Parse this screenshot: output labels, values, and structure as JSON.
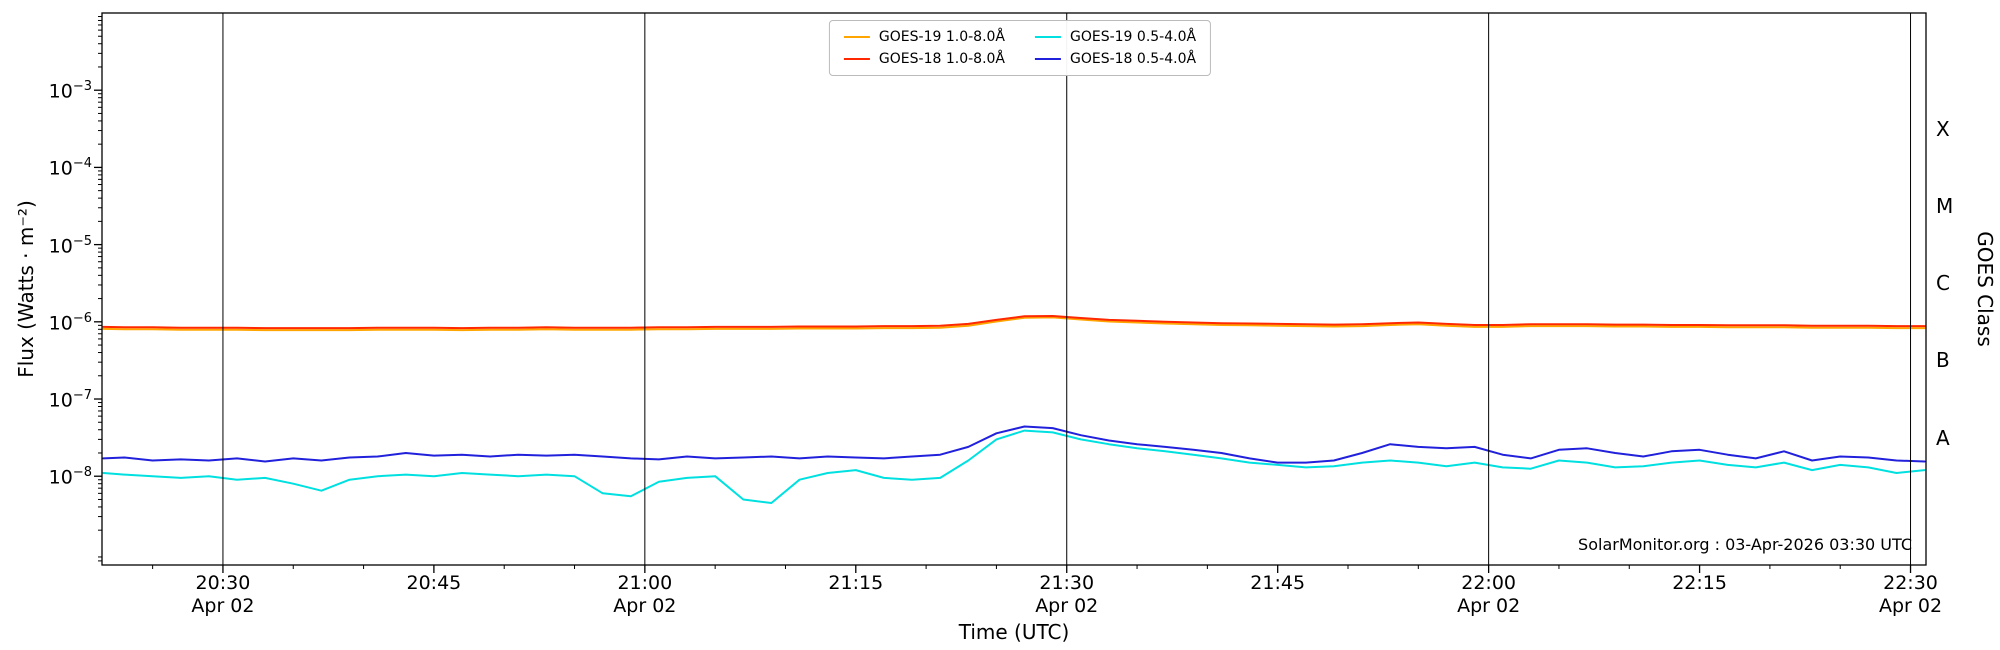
{
  "chart_data": {
    "type": "line",
    "xlabel": "Time (UTC)",
    "ylabel_left": "Flux (Watts · m⁻²)",
    "ylabel_right": "GOES Class",
    "watermark": "SolarMonitor.org : 03-Apr-2026 03:30 UTC",
    "x_axis_note": "x values are minutes after 20:00 UTC on 02-Apr-2026",
    "xlim": [
      21.4,
      151.1
    ],
    "ylog_lim": [
      -9.15,
      -2.0
    ],
    "y_tick_exponents": [
      -3,
      -4,
      -5,
      -6,
      -7,
      -8
    ],
    "x_ticks": [
      {
        "t": 30,
        "time": "20:30",
        "date": "Apr 02"
      },
      {
        "t": 45,
        "time": "20:45"
      },
      {
        "t": 60,
        "time": "21:00",
        "date": "Apr 02"
      },
      {
        "t": 75,
        "time": "21:15"
      },
      {
        "t": 90,
        "time": "21:30",
        "date": "Apr 02"
      },
      {
        "t": 105,
        "time": "21:45"
      },
      {
        "t": 120,
        "time": "22:00",
        "date": "Apr 02"
      },
      {
        "t": 135,
        "time": "22:15"
      },
      {
        "t": 150,
        "time": "22:30",
        "date": "Apr 02"
      }
    ],
    "x_minor_step": 5,
    "vlines_t": [
      30,
      60,
      90,
      120,
      150
    ],
    "goes_classes": [
      {
        "label": "X",
        "exp": -3.5
      },
      {
        "label": "M",
        "exp": -4.5
      },
      {
        "label": "C",
        "exp": -5.5
      },
      {
        "label": "B",
        "exp": -6.5
      },
      {
        "label": "A",
        "exp": -7.5
      }
    ],
    "colors": {
      "gridline": "#000000",
      "axis": "#000000",
      "legend_border": "#bbbbbb"
    },
    "legend_columns": 2,
    "t_minutes": [
      21.5,
      23,
      25,
      27,
      29,
      31,
      33,
      35,
      37,
      39,
      41,
      43,
      45,
      47,
      49,
      51,
      53,
      55,
      57,
      59,
      61,
      63,
      65,
      67,
      69,
      71,
      73,
      75,
      77,
      79,
      81,
      83,
      85,
      87,
      89,
      91,
      93,
      95,
      97,
      99,
      101,
      103,
      105,
      107,
      109,
      111,
      113,
      115,
      117,
      119,
      121,
      123,
      125,
      127,
      129,
      131,
      133,
      135,
      137,
      139,
      141,
      143,
      145,
      147,
      149,
      151
    ],
    "series": [
      {
        "id": "goes19-long",
        "name": "GOES-19 1.0-8.0Å",
        "color": "#ffa500",
        "flux": [
          8.1e-07,
          8e-07,
          8e-07,
          7.9e-07,
          7.9e-07,
          7.9e-07,
          7.8e-07,
          7.8e-07,
          7.8e-07,
          7.8e-07,
          7.9e-07,
          7.9e-07,
          7.9e-07,
          7.8e-07,
          7.9e-07,
          7.9e-07,
          8e-07,
          7.9e-07,
          7.9e-07,
          7.9e-07,
          8e-07,
          8e-07,
          8.1e-07,
          8.1e-07,
          8.1e-07,
          8.2e-07,
          8.2e-07,
          8.2e-07,
          8.3e-07,
          8.3e-07,
          8.4e-07,
          8.9e-07,
          1.01e-06,
          1.13e-06,
          1.14e-06,
          1.07e-06,
          1.01e-06,
          9.8e-07,
          9.5e-07,
          9.3e-07,
          9.1e-07,
          9e-07,
          8.9e-07,
          8.8e-07,
          8.7e-07,
          8.8e-07,
          9.1e-07,
          9.3e-07,
          8.9e-07,
          8.6e-07,
          8.6e-07,
          8.8e-07,
          8.8e-07,
          8.8e-07,
          8.7e-07,
          8.7e-07,
          8.6e-07,
          8.6e-07,
          8.5e-07,
          8.5e-07,
          8.5e-07,
          8.4e-07,
          8.4e-07,
          8.4e-07,
          8.3e-07,
          8.3e-07
        ]
      },
      {
        "id": "goes18-long",
        "name": "GOES-18 1.0-8.0Å",
        "color": "#ff2800",
        "flux": [
          8.6e-07,
          8.5e-07,
          8.5e-07,
          8.4e-07,
          8.4e-07,
          8.4e-07,
          8.3e-07,
          8.3e-07,
          8.3e-07,
          8.3e-07,
          8.4e-07,
          8.4e-07,
          8.4e-07,
          8.3e-07,
          8.4e-07,
          8.4e-07,
          8.5e-07,
          8.4e-07,
          8.4e-07,
          8.4e-07,
          8.5e-07,
          8.5e-07,
          8.6e-07,
          8.6e-07,
          8.6e-07,
          8.7e-07,
          8.7e-07,
          8.7e-07,
          8.8e-07,
          8.8e-07,
          8.9e-07,
          9.4e-07,
          1.06e-06,
          1.18e-06,
          1.19e-06,
          1.12e-06,
          1.06e-06,
          1.03e-06,
          1e-06,
          9.8e-07,
          9.6e-07,
          9.5e-07,
          9.4e-07,
          9.3e-07,
          9.2e-07,
          9.3e-07,
          9.6e-07,
          9.8e-07,
          9.4e-07,
          9.1e-07,
          9.1e-07,
          9.3e-07,
          9.3e-07,
          9.3e-07,
          9.2e-07,
          9.2e-07,
          9.1e-07,
          9.1e-07,
          9e-07,
          9e-07,
          9e-07,
          8.9e-07,
          8.9e-07,
          8.9e-07,
          8.8e-07,
          8.8e-07
        ]
      },
      {
        "id": "goes19-short",
        "name": "GOES-19 0.5-4.0Å",
        "color": "#00e0e0",
        "flux": [
          1.1e-08,
          1.05e-08,
          1e-08,
          9.5e-09,
          1e-08,
          9e-09,
          9.5e-09,
          8e-09,
          6.5e-09,
          9e-09,
          1e-08,
          1.05e-08,
          1e-08,
          1.1e-08,
          1.05e-08,
          1e-08,
          1.05e-08,
          1e-08,
          6e-09,
          5.5e-09,
          8.5e-09,
          9.5e-09,
          1e-08,
          5e-09,
          4.5e-09,
          9e-09,
          1.1e-08,
          1.2e-08,
          9.5e-09,
          9e-09,
          9.5e-09,
          1.6e-08,
          3e-08,
          3.9e-08,
          3.7e-08,
          3e-08,
          2.6e-08,
          2.3e-08,
          2.1e-08,
          1.9e-08,
          1.7e-08,
          1.5e-08,
          1.4e-08,
          1.3e-08,
          1.35e-08,
          1.5e-08,
          1.6e-08,
          1.5e-08,
          1.35e-08,
          1.5e-08,
          1.3e-08,
          1.25e-08,
          1.6e-08,
          1.5e-08,
          1.3e-08,
          1.35e-08,
          1.5e-08,
          1.6e-08,
          1.4e-08,
          1.3e-08,
          1.5e-08,
          1.2e-08,
          1.4e-08,
          1.3e-08,
          1.1e-08,
          1.2e-08
        ]
      },
      {
        "id": "goes18-short",
        "name": "GOES-18 0.5-4.0Å",
        "color": "#2121dc",
        "flux": [
          1.7e-08,
          1.75e-08,
          1.6e-08,
          1.65e-08,
          1.6e-08,
          1.7e-08,
          1.55e-08,
          1.7e-08,
          1.6e-08,
          1.75e-08,
          1.8e-08,
          2e-08,
          1.85e-08,
          1.9e-08,
          1.8e-08,
          1.9e-08,
          1.85e-08,
          1.9e-08,
          1.8e-08,
          1.7e-08,
          1.65e-08,
          1.8e-08,
          1.7e-08,
          1.75e-08,
          1.8e-08,
          1.7e-08,
          1.8e-08,
          1.75e-08,
          1.7e-08,
          1.8e-08,
          1.9e-08,
          2.4e-08,
          3.6e-08,
          4.4e-08,
          4.2e-08,
          3.4e-08,
          2.9e-08,
          2.6e-08,
          2.4e-08,
          2.2e-08,
          2e-08,
          1.7e-08,
          1.5e-08,
          1.5e-08,
          1.6e-08,
          2e-08,
          2.6e-08,
          2.4e-08,
          2.3e-08,
          2.4e-08,
          1.9e-08,
          1.7e-08,
          2.2e-08,
          2.3e-08,
          2e-08,
          1.8e-08,
          2.1e-08,
          2.2e-08,
          1.9e-08,
          1.7e-08,
          2.1e-08,
          1.6e-08,
          1.8e-08,
          1.75e-08,
          1.6e-08,
          1.55e-08
        ]
      }
    ]
  }
}
